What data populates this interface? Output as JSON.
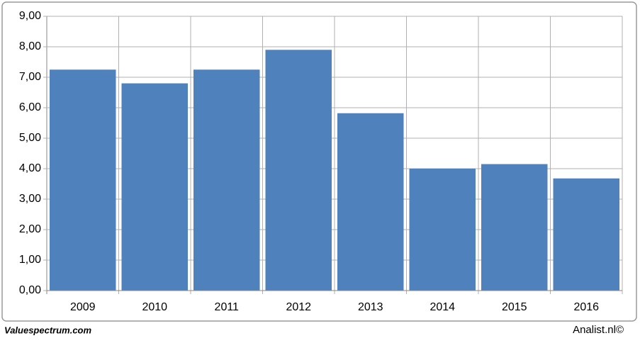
{
  "chart_data": {
    "type": "bar",
    "categories": [
      "2009",
      "2010",
      "2011",
      "2012",
      "2013",
      "2014",
      "2015",
      "2016"
    ],
    "values": [
      7.25,
      6.8,
      7.25,
      7.9,
      5.82,
      4.0,
      4.15,
      3.68
    ],
    "color": "#4f81bd",
    "ylim": [
      0,
      9
    ],
    "yticks": [
      {
        "value": 0,
        "label": "0,00"
      },
      {
        "value": 1,
        "label": "1,00"
      },
      {
        "value": 2,
        "label": "2,00"
      },
      {
        "value": 3,
        "label": "3,00"
      },
      {
        "value": 4,
        "label": "4,00"
      },
      {
        "value": 5,
        "label": "5,00"
      },
      {
        "value": 6,
        "label": "6,00"
      },
      {
        "value": 7,
        "label": "7,00"
      },
      {
        "value": 8,
        "label": "8,00"
      },
      {
        "value": 9,
        "label": "9,00"
      }
    ],
    "grid": true,
    "source": "Valuespectrum.com",
    "credit": "Analist.nl©"
  }
}
